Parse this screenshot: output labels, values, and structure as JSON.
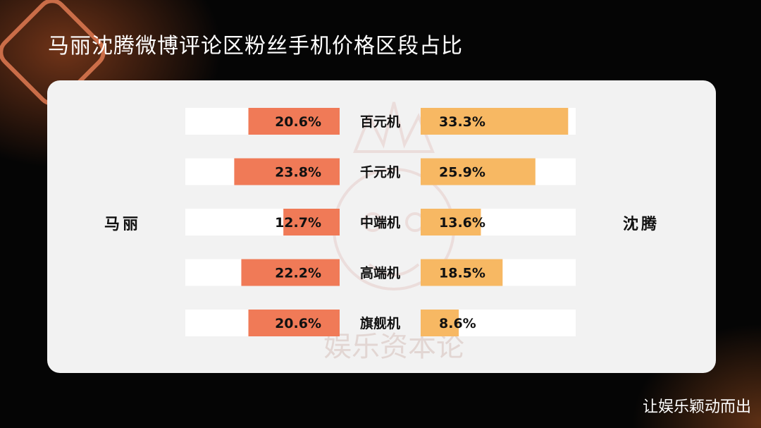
{
  "title": "马丽沈腾微博评论区粉丝手机价格区段占比",
  "footer": "让娱乐颖动而出",
  "watermark_text": "娱乐资本论",
  "chart_data": {
    "type": "bar",
    "categories": [
      "百元机",
      "千元机",
      "中端机",
      "高端机",
      "旗舰机"
    ],
    "series": [
      {
        "name": "马丽",
        "values": [
          20.6,
          23.8,
          12.7,
          22.2,
          20.6
        ],
        "color": "#f07a57"
      },
      {
        "name": "沈腾",
        "values": [
          33.3,
          25.9,
          13.6,
          18.5,
          8.6
        ],
        "color": "#f7b863"
      }
    ],
    "value_labels": {
      "left": [
        "20.6%",
        "23.8%",
        "12.7%",
        "22.2%",
        "20.6%"
      ],
      "right": [
        "33.3%",
        "25.9%",
        "13.6%",
        "18.5%",
        "8.6%"
      ]
    },
    "xlim": [
      0,
      35
    ]
  }
}
